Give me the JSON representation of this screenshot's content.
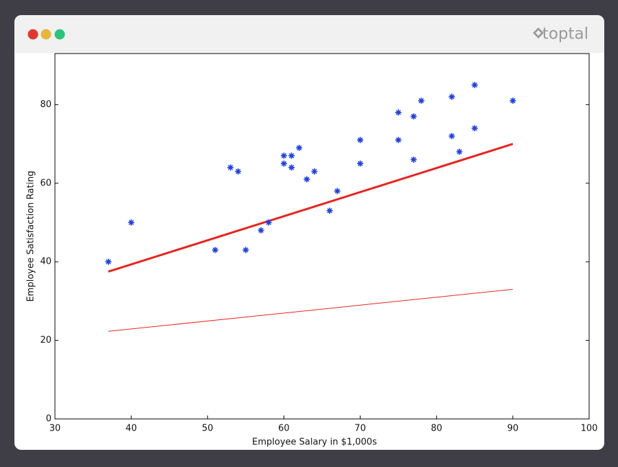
{
  "chart_data": {
    "type": "scatter",
    "xlabel": "Employee Salary in $1,000s",
    "ylabel": "Employee Satisfaction Rating",
    "x": [
      37,
      40,
      51,
      53,
      54,
      55,
      57,
      58,
      60,
      60,
      61,
      61,
      62,
      63,
      64,
      66,
      67,
      70,
      70,
      75,
      75,
      77,
      77,
      78,
      82,
      82,
      83,
      85,
      85,
      90
    ],
    "values": [
      40,
      50,
      43,
      64,
      63,
      43,
      48,
      50,
      67,
      65,
      67,
      64,
      69,
      61,
      63,
      53,
      58,
      71,
      65,
      78,
      71,
      77,
      66,
      81,
      82,
      72,
      68,
      85,
      74,
      81
    ],
    "color": "#1f3fe6",
    "lines": [
      {
        "x": [
          37,
          90
        ],
        "values": [
          37.5,
          70
        ],
        "color": "#e8231c"
      },
      {
        "x": [
          37,
          90
        ],
        "values": [
          22.3,
          33
        ],
        "color": "#e8231c"
      }
    ],
    "xlim": [
      30,
      100
    ],
    "ylim": [
      0,
      93
    ],
    "xticks": [
      30,
      40,
      50,
      60,
      70,
      80,
      90,
      100
    ],
    "yticks": [
      0,
      20,
      40,
      60,
      80
    ]
  },
  "window": {
    "brand": "toptal"
  }
}
